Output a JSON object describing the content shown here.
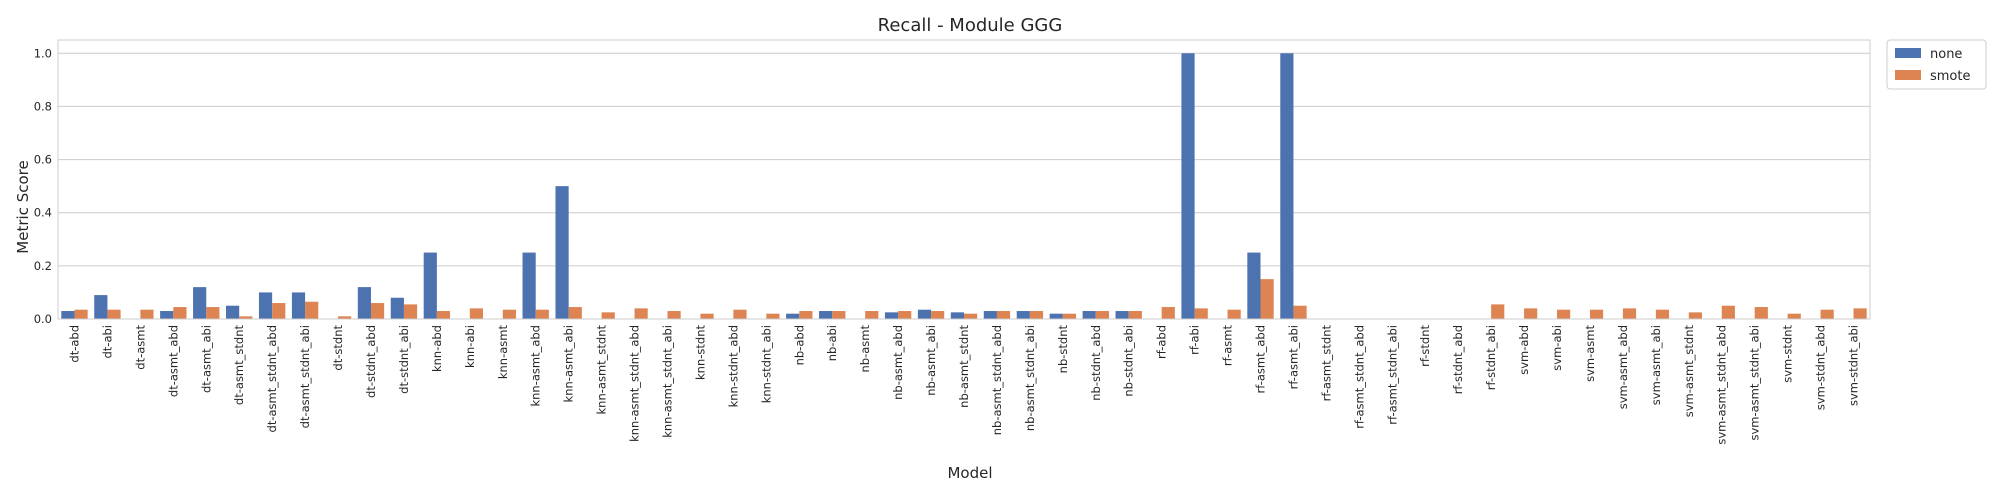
{
  "chart_data": {
    "type": "bar",
    "title": "Recall - Module GGG",
    "xlabel": "Model",
    "ylabel": "Metric Score",
    "ylim": [
      0,
      1.05
    ],
    "yticks": [
      "0.0",
      "0.2",
      "0.4",
      "0.6",
      "0.8",
      "1.0"
    ],
    "grid": true,
    "legend_position": "outside-top-right",
    "categories": [
      "dt-abd",
      "dt-abi",
      "dt-asmt",
      "dt-asmt_abd",
      "dt-asmt_abi",
      "dt-asmt_stdnt",
      "dt-asmt_stdnt_abd",
      "dt-asmt_stdnt_abi",
      "dt-stdnt",
      "dt-stdnt_abd",
      "dt-stdnt_abi",
      "knn-abd",
      "knn-abi",
      "knn-asmt",
      "knn-asmt_abd",
      "knn-asmt_abi",
      "knn-asmt_stdnt",
      "knn-asmt_stdnt_abd",
      "knn-asmt_stdnt_abi",
      "knn-stdnt",
      "knn-stdnt_abd",
      "knn-stdnt_abi",
      "nb-abd",
      "nb-abi",
      "nb-asmt",
      "nb-asmt_abd",
      "nb-asmt_abi",
      "nb-asmt_stdnt",
      "nb-asmt_stdnt_abd",
      "nb-asmt_stdnt_abi",
      "nb-stdnt",
      "nb-stdnt_abd",
      "nb-stdnt_abi",
      "rf-abd",
      "rf-abi",
      "rf-asmt",
      "rf-asmt_abd",
      "rf-asmt_abi",
      "rf-asmt_stdnt",
      "rf-asmt_stdnt_abd",
      "rf-asmt_stdnt_abi",
      "rf-stdnt",
      "rf-stdnt_abd",
      "rf-stdnt_abi",
      "svm-abd",
      "svm-abi",
      "svm-asmt",
      "svm-asmt_abd",
      "svm-asmt_abi",
      "svm-asmt_stdnt",
      "svm-asmt_stdnt_abd",
      "svm-asmt_stdnt_abi",
      "svm-stdnt",
      "svm-stdnt_abd",
      "svm-stdnt_abi"
    ],
    "series": [
      {
        "name": "none",
        "color": "#4c72b0",
        "values": [
          0.03,
          0.09,
          0,
          0.03,
          0.12,
          0.05,
          0.1,
          0.1,
          0,
          0.12,
          0.08,
          0.25,
          0,
          0,
          0.25,
          0.5,
          0,
          0,
          0,
          0,
          0,
          0,
          0.02,
          0.03,
          0,
          0.025,
          0.035,
          0.025,
          0.03,
          0.03,
          0.02,
          0.03,
          0.03,
          0,
          1.0,
          0,
          0.25,
          1.0,
          0,
          0,
          0,
          0,
          0,
          0,
          0,
          0,
          0,
          0,
          0,
          0,
          0,
          0,
          0,
          0,
          0
        ]
      },
      {
        "name": "smote",
        "color": "#dd8452",
        "values": [
          0.035,
          0.035,
          0.035,
          0.045,
          0.045,
          0.01,
          0.06,
          0.065,
          0.01,
          0.06,
          0.055,
          0.03,
          0.04,
          0.035,
          0.035,
          0.045,
          0.025,
          0.04,
          0.03,
          0.02,
          0.035,
          0.02,
          0.03,
          0.03,
          0.03,
          0.03,
          0.03,
          0.02,
          0.03,
          0.03,
          0.02,
          0.03,
          0.03,
          0.045,
          0.04,
          0.035,
          0.15,
          0.05,
          0,
          0,
          0,
          0,
          0,
          0.055,
          0.04,
          0.035,
          0.035,
          0.04,
          0.035,
          0.025,
          0.05,
          0.045,
          0.02,
          0.035,
          0.04
        ]
      }
    ]
  }
}
